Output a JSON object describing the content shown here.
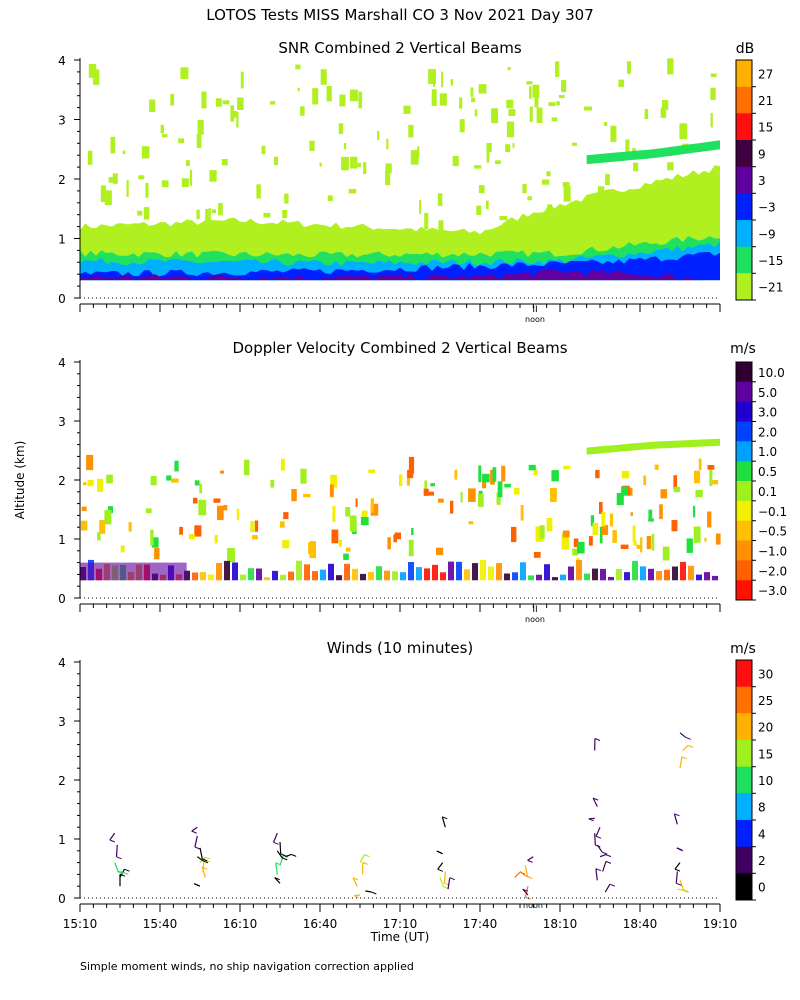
{
  "figure": {
    "title": "LOTOS Tests MISS Marshall CO   3 Nov 2021 Day 307",
    "ylabel": "Altitude (km)",
    "xlabel": "Time (UT)",
    "footnote": "Simple moment winds, no ship navigation correction applied",
    "noon_label": "noon",
    "noon_marker": "II"
  },
  "chart_data": [
    {
      "type": "heatmap",
      "title": "SNR Combined 2 Vertical Beams",
      "xlabel": "Time (UT)",
      "ylabel": "Altitude (km)",
      "xlim": [
        0,
        240
      ],
      "ylim": [
        0,
        4
      ],
      "yticks": [
        "0",
        "1",
        "2",
        "3",
        "4"
      ],
      "colorbar": {
        "unit": "dB",
        "labels": [
          "27",
          "21",
          "15",
          "9",
          "3",
          "−3",
          "−9",
          "−15",
          "−21"
        ],
        "colors": [
          "#ffb000",
          "#ff7000",
          "#ff1010",
          "#400040",
          "#6000a0",
          "#0020ff",
          "#00b0ff",
          "#20e060",
          "#b0f020"
        ]
      },
      "layers": [
        {
          "name": "haze",
          "color": "#b0f020",
          "profile": [
            [
              0,
              1.2
            ],
            [
              60,
              1.3
            ],
            [
              150,
              1.1
            ],
            [
              170,
              1.45
            ],
            [
              200,
              1.8
            ],
            [
              240,
              2.2
            ]
          ]
        },
        {
          "name": "aqua",
          "color": "#20e060",
          "profile": [
            [
              0,
              0.75
            ],
            [
              90,
              0.72
            ],
            [
              180,
              0.75
            ],
            [
              240,
              1.05
            ]
          ]
        },
        {
          "name": "cyan",
          "color": "#00b0ff",
          "profile": [
            [
              0,
              0.62
            ],
            [
              100,
              0.58
            ],
            [
              180,
              0.62
            ],
            [
              240,
              0.9
            ]
          ]
        },
        {
          "name": "blue",
          "color": "#0020ff",
          "profile": [
            [
              0,
              0.4
            ],
            [
              90,
              0.45
            ],
            [
              160,
              0.55
            ],
            [
              200,
              0.6
            ],
            [
              240,
              0.75
            ]
          ]
        },
        {
          "name": "purple",
          "color": "#6000a0",
          "profile": [
            [
              150,
              0.35
            ],
            [
              180,
              0.45
            ],
            [
              210,
              0.4
            ],
            [
              240,
              0.3
            ]
          ]
        }
      ],
      "upper_band": {
        "color": "#20e060",
        "profile": [
          [
            190,
            2.4
          ],
          [
            215,
            2.5
          ],
          [
            240,
            2.65
          ]
        ],
        "thickness": 0.15
      }
    },
    {
      "type": "heatmap",
      "title": "Doppler Velocity Combined 2 Vertical Beams",
      "xlabel": "Time (UT)",
      "ylabel": "Altitude (km)",
      "xlim": [
        0,
        240
      ],
      "ylim": [
        0,
        4
      ],
      "yticks": [
        "0",
        "1",
        "2",
        "3",
        "4"
      ],
      "colorbar": {
        "unit": "m/s",
        "labels": [
          "10.0",
          "5.0",
          "3.0",
          "2.0",
          "1.0",
          "0.5",
          "0.1",
          "−0.1",
          "−0.5",
          "−1.0",
          "−2.0",
          "−3.0"
        ],
        "colors": [
          "#300030",
          "#6000a0",
          "#2000d0",
          "#0040ff",
          "#00a0ff",
          "#20e040",
          "#a0f020",
          "#f0f000",
          "#ffc000",
          "#ff9000",
          "#ff6000",
          "#ff1000"
        ]
      },
      "layers": [
        {
          "name": "low-band",
          "color": "#ffffff",
          "profile": [
            [
              0,
              0.5
            ],
            [
              240,
              0.5
            ]
          ]
        }
      ],
      "upper_band": {
        "color": "#a0f020",
        "profile": [
          [
            190,
            2.55
          ],
          [
            215,
            2.65
          ],
          [
            240,
            2.7
          ]
        ],
        "thickness": 0.12
      }
    },
    {
      "type": "scatter",
      "title": "Winds (10 minutes)",
      "xlabel": "Time (UT)",
      "ylabel": "Altitude (km)",
      "xlim": [
        0,
        240
      ],
      "ylim": [
        0,
        4
      ],
      "yticks": [
        "0",
        "1",
        "2",
        "3",
        "4"
      ],
      "xticks": [
        "15:10",
        "15:40",
        "16:10",
        "16:40",
        "17:10",
        "17:40",
        "18:10",
        "18:40",
        "19:10"
      ],
      "colorbar": {
        "unit": "m/s",
        "labels": [
          "30",
          "25",
          "20",
          "15",
          "10",
          "8",
          "4",
          "2",
          "0"
        ],
        "colors": [
          "#ff1010",
          "#ff7000",
          "#ffb000",
          "#a0f020",
          "#20e060",
          "#00b0ff",
          "#0020ff",
          "#400060",
          "#000000"
        ]
      },
      "barb_times": [
        15,
        45,
        75,
        105,
        135,
        165,
        195,
        225
      ],
      "barbs": [
        {
          "t": 15,
          "h": 0.2,
          "speed": 1
        },
        {
          "t": 15,
          "h": 0.35,
          "speed": 1
        },
        {
          "t": 14,
          "h": 0.45,
          "speed": 14
        },
        {
          "t": 13,
          "h": 0.6,
          "speed": 14
        },
        {
          "t": 14,
          "h": 0.9,
          "speed": 2
        },
        {
          "t": 13,
          "h": 1.1,
          "speed": 2
        },
        {
          "t": 45,
          "h": 0.2,
          "speed": 1
        },
        {
          "t": 47,
          "h": 0.35,
          "speed": 20
        },
        {
          "t": 46,
          "h": 0.45,
          "speed": 20
        },
        {
          "t": 45,
          "h": 0.6,
          "speed": 15
        },
        {
          "t": 44,
          "h": 0.7,
          "speed": 1
        },
        {
          "t": 45,
          "h": 0.85,
          "speed": 1
        },
        {
          "t": 44,
          "h": 1.05,
          "speed": 2
        },
        {
          "t": 44,
          "h": 1.2,
          "speed": 2
        },
        {
          "t": 75,
          "h": 0.25,
          "speed": 1
        },
        {
          "t": 74,
          "h": 0.4,
          "speed": 14
        },
        {
          "t": 75,
          "h": 0.55,
          "speed": 14
        },
        {
          "t": 77,
          "h": 0.7,
          "speed": 1
        },
        {
          "t": 74,
          "h": 0.8,
          "speed": 1
        },
        {
          "t": 75,
          "h": 0.95,
          "speed": 1
        },
        {
          "t": 74,
          "h": 1.1,
          "speed": 2
        },
        {
          "t": 105,
          "h": 0.05,
          "speed": 20
        },
        {
          "t": 104,
          "h": 0.2,
          "speed": 20
        },
        {
          "t": 106,
          "h": 0.4,
          "speed": 20
        },
        {
          "t": 105,
          "h": 0.6,
          "speed": 15
        },
        {
          "t": 107,
          "h": 0.12,
          "speed": 1
        },
        {
          "t": 135,
          "h": 0.35,
          "speed": 15
        },
        {
          "t": 137,
          "h": 0.45,
          "speed": 20
        },
        {
          "t": 136,
          "h": 0.6,
          "speed": 1
        },
        {
          "t": 136,
          "h": 0.75,
          "speed": 1
        },
        {
          "t": 137,
          "h": 1.2,
          "speed": 1
        },
        {
          "t": 138,
          "h": 0.15,
          "speed": 2
        },
        {
          "t": 163,
          "h": 0.35,
          "speed": 25
        },
        {
          "t": 165,
          "h": 0.45,
          "speed": 25
        },
        {
          "t": 167,
          "h": 0.55,
          "speed": 20
        },
        {
          "t": 168,
          "h": 0.2,
          "speed": 25
        },
        {
          "t": 170,
          "h": 0.7,
          "speed": 2
        },
        {
          "t": 168,
          "h": 0.05,
          "speed": 2
        },
        {
          "t": 194,
          "h": 0.3,
          "speed": 2
        },
        {
          "t": 196,
          "h": 0.45,
          "speed": 2
        },
        {
          "t": 195,
          "h": 0.7,
          "speed": 2
        },
        {
          "t": 194,
          "h": 0.9,
          "speed": 2
        },
        {
          "t": 193,
          "h": 1.1,
          "speed": 2
        },
        {
          "t": 195,
          "h": 1.2,
          "speed": 2
        },
        {
          "t": 193,
          "h": 1.35,
          "speed": 2
        },
        {
          "t": 194,
          "h": 1.55,
          "speed": 2
        },
        {
          "t": 193,
          "h": 2.5,
          "speed": 2
        },
        {
          "t": 197,
          "h": 0.1,
          "speed": 2
        },
        {
          "t": 224,
          "h": 0.15,
          "speed": 15
        },
        {
          "t": 225,
          "h": 0.3,
          "speed": 20
        },
        {
          "t": 224,
          "h": 0.45,
          "speed": 2
        },
        {
          "t": 225,
          "h": 0.6,
          "speed": 1
        },
        {
          "t": 226,
          "h": 0.8,
          "speed": 2
        },
        {
          "t": 224,
          "h": 1.25,
          "speed": 2
        },
        {
          "t": 225,
          "h": 2.2,
          "speed": 20
        },
        {
          "t": 226,
          "h": 2.5,
          "speed": 20
        },
        {
          "t": 225,
          "h": 2.8,
          "speed": 2
        }
      ]
    }
  ]
}
